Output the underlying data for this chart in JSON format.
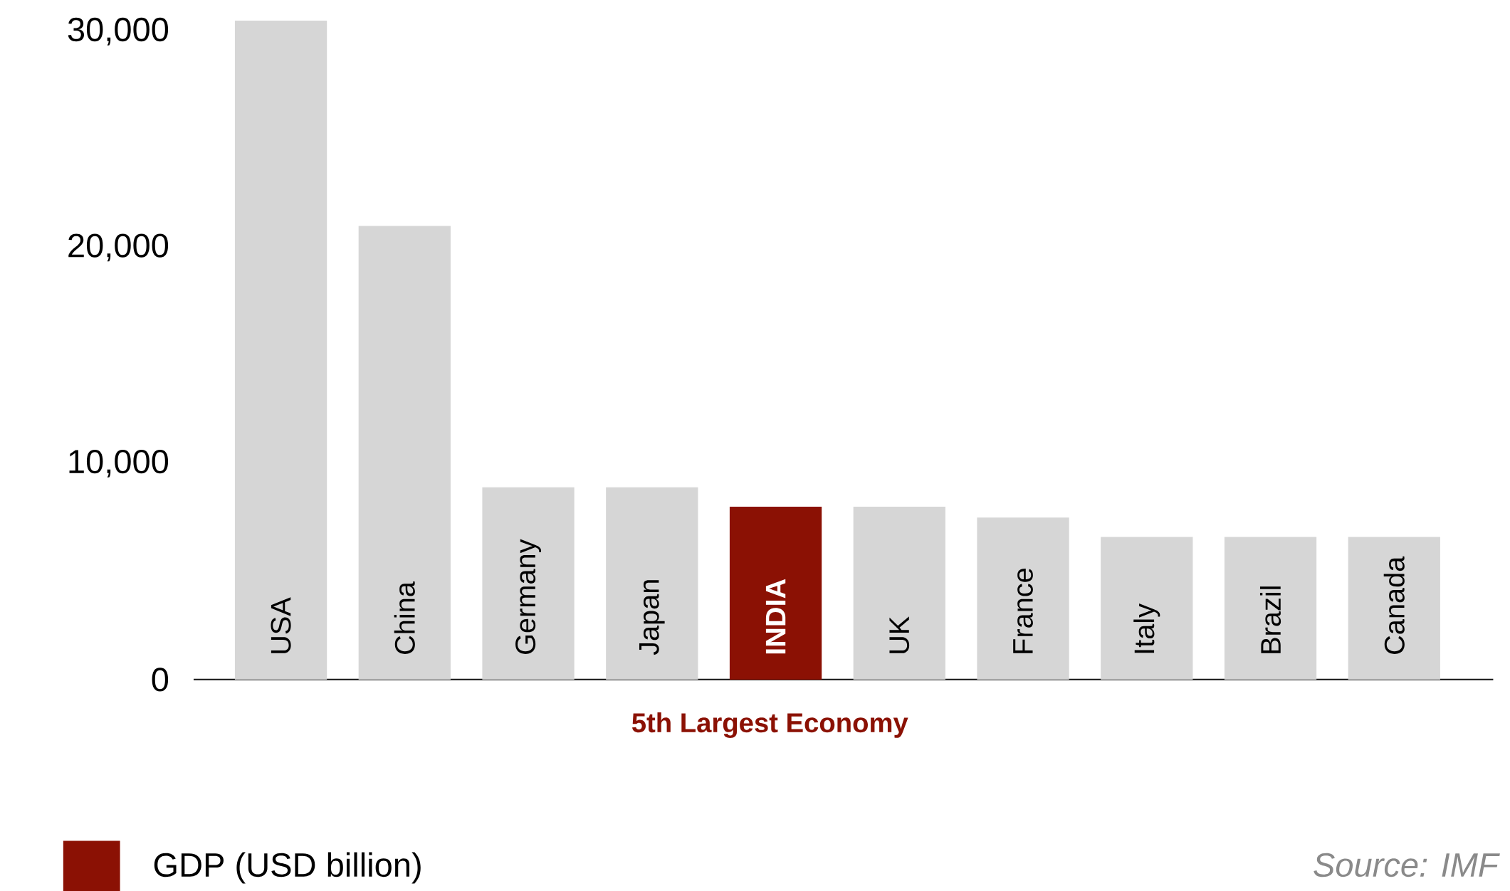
{
  "chart_data": {
    "type": "bar",
    "categories": [
      "USA",
      "China",
      "Germany",
      "Japan",
      "INDIA",
      "UK",
      "France",
      "Italy",
      "Brazil",
      "Canada"
    ],
    "series": [
      {
        "name": "GDP (USD billion)",
        "color": "#8b1104",
        "values": [
          30500,
          21000,
          8900,
          8900,
          8000,
          8000,
          7500,
          6600,
          6600,
          6600
        ],
        "colors": [
          "#d6d6d6",
          "#d6d6d6",
          "#d6d6d6",
          "#d6d6d6",
          "#8b1104",
          "#d6d6d6",
          "#d6d6d6",
          "#d6d6d6",
          "#d6d6d6",
          "#d6d6d6"
        ]
      }
    ],
    "ylim": [
      0,
      30500
    ],
    "yticks": [
      0,
      {
        "value": 10000,
        "label": "10,000"
      },
      {
        "value": 20000,
        "label": "20,000"
      },
      {
        "value": 30000,
        "label": "30,000"
      }
    ],
    "legend": "bottom left",
    "annotations": [
      "5th Largest Economy",
      "Source: IMF"
    ]
  }
}
